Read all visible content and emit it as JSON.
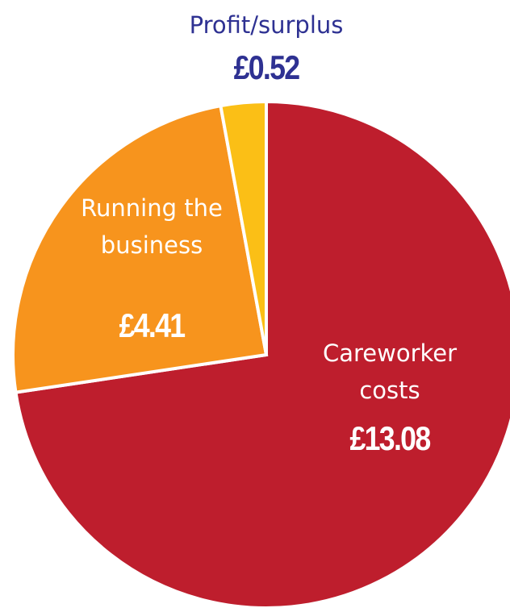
{
  "chart_data": {
    "type": "pie",
    "categories": [
      "Careworker costs",
      "Running the business",
      "Profit/surplus"
    ],
    "values": [
      13.08,
      4.41,
      0.52
    ],
    "value_labels": [
      "£13.08",
      "£4.41",
      "£0.52"
    ],
    "colors": [
      "#be1e2d",
      "#f7941d",
      "#fbbf16"
    ]
  }
}
